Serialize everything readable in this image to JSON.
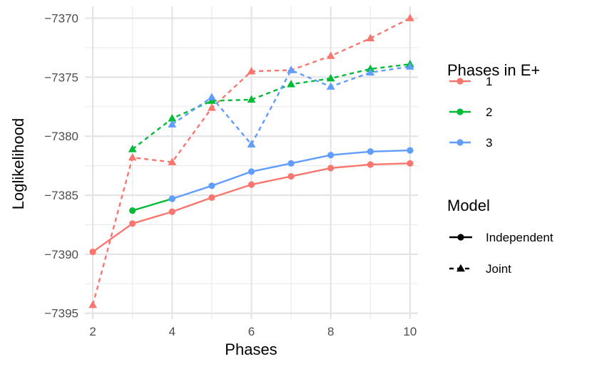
{
  "chart_data": {
    "type": "line",
    "title": "",
    "xlabel": "Phases",
    "ylabel": "Loglikelihood",
    "xlim": [
      1.8,
      10.2
    ],
    "ylim": [
      -7395.5,
      -7369.0
    ],
    "x_ticks": [
      2,
      4,
      6,
      8,
      10
    ],
    "x_tick_labels": [
      "2",
      "4",
      "6",
      "8",
      "10"
    ],
    "y_ticks": [
      -7395,
      -7390,
      -7385,
      -7380,
      -7375,
      -7370
    ],
    "y_tick_labels": [
      "−7395",
      "−7390",
      "−7385",
      "−7380",
      "−7375",
      "−7370"
    ],
    "grid": true,
    "series": [
      {
        "name": "1",
        "group": "1",
        "model": "Independent",
        "color": "#F8766D",
        "x": [
          2,
          3,
          4,
          5,
          6,
          7,
          8,
          9,
          10
        ],
        "y": [
          -7389.8,
          -7387.4,
          -7386.4,
          -7385.2,
          -7384.1,
          -7383.4,
          -7382.7,
          -7382.4,
          -7382.3
        ]
      },
      {
        "name": "1",
        "group": "1",
        "model": "Joint",
        "color": "#F8766D",
        "x": [
          2,
          3,
          4,
          5,
          6,
          7,
          8,
          9,
          10
        ],
        "y": [
          -7394.3,
          -7381.8,
          -7382.2,
          -7377.6,
          -7374.5,
          -7374.4,
          -7373.2,
          -7371.7,
          -7370.0
        ]
      },
      {
        "name": "2",
        "group": "2",
        "model": "Independent",
        "color": "#00BA38",
        "x": [
          3,
          4
        ],
        "y": [
          -7386.3,
          -7385.3
        ]
      },
      {
        "name": "2",
        "group": "2",
        "model": "Joint",
        "color": "#00BA38",
        "x": [
          3,
          4,
          5,
          6,
          7,
          8,
          9,
          10
        ],
        "y": [
          -7381.1,
          -7378.5,
          -7377.0,
          -7376.9,
          -7375.6,
          -7375.1,
          -7374.3,
          -7373.9
        ]
      },
      {
        "name": "3",
        "group": "3",
        "model": "Independent",
        "color": "#619CFF",
        "x": [
          4,
          5,
          6,
          7,
          8,
          9,
          10
        ],
        "y": [
          -7385.3,
          -7384.2,
          -7383.0,
          -7382.3,
          -7381.6,
          -7381.3,
          -7381.2
        ]
      },
      {
        "name": "3",
        "group": "3",
        "model": "Joint",
        "color": "#619CFF",
        "x": [
          4,
          5,
          6,
          7,
          8,
          9,
          10
        ],
        "y": [
          -7379.0,
          -7376.7,
          -7380.7,
          -7374.4,
          -7375.8,
          -7374.6,
          -7374.1
        ]
      }
    ],
    "legends": [
      {
        "title": "Phases in E+",
        "entries": [
          {
            "label": "1",
            "color": "#F8766D"
          },
          {
            "label": "2",
            "color": "#00BA38"
          },
          {
            "label": "3",
            "color": "#619CFF"
          }
        ]
      },
      {
        "title": "Model",
        "entries": [
          {
            "label": "Independent",
            "linetype": "solid",
            "shape": "circle"
          },
          {
            "label": "Joint",
            "linetype": "dashed",
            "shape": "triangle"
          }
        ]
      }
    ],
    "legend_position": "right"
  }
}
